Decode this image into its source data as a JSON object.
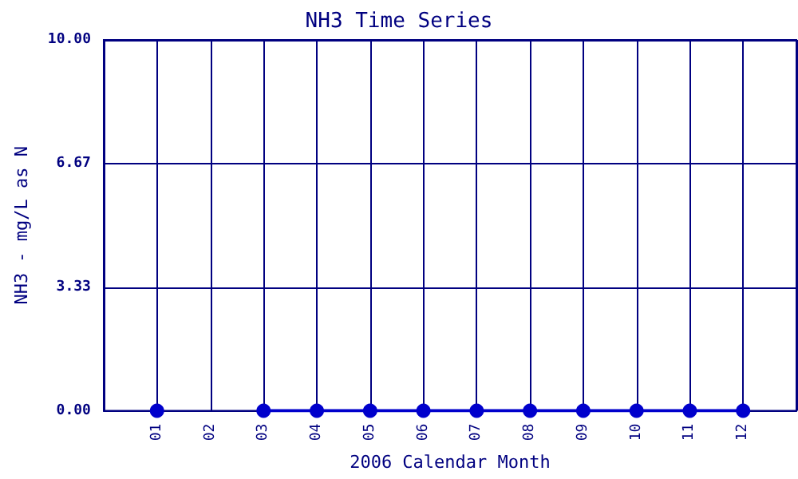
{
  "chart_data": {
    "type": "line",
    "title": "NH3 Time Series",
    "xlabel": "2006 Calendar Month",
    "ylabel": "NH3 - mg/L as N",
    "categories": [
      "01",
      "02",
      "03",
      "04",
      "05",
      "06",
      "07",
      "08",
      "09",
      "10",
      "11",
      "12"
    ],
    "series": [
      {
        "color": "#0000cc",
        "values": [
          0,
          null,
          0,
          0,
          0,
          0,
          0,
          0,
          0,
          0,
          0,
          0
        ]
      }
    ],
    "ylim": [
      0,
      10
    ],
    "yticks": [
      {
        "value": 0,
        "label": "0.00"
      },
      {
        "value": 3.33,
        "label": "3.33"
      },
      {
        "value": 6.67,
        "label": "6.67"
      },
      {
        "value": 10,
        "label": "10.00"
      }
    ],
    "grid": true,
    "marker": "circle",
    "line_style": "solid"
  }
}
